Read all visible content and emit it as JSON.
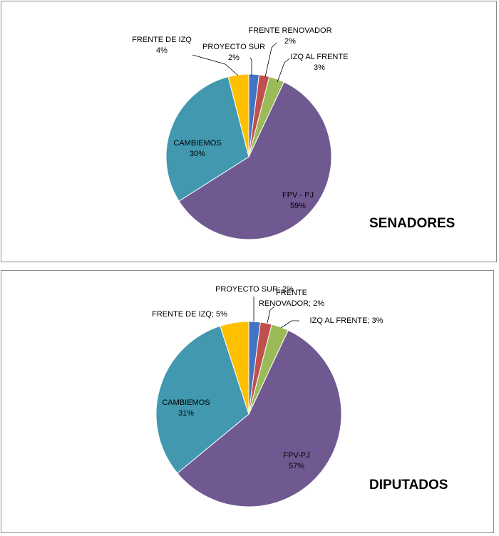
{
  "colors": {
    "proyecto_sur": "#4472C4",
    "frente_renovador": "#C0504D",
    "izq_al_frente": "#9BBB59",
    "fpv_pj": "#705990",
    "cambiemos": "#4198AF",
    "frente_de_izq": "#FFC000"
  },
  "chart_data": [
    {
      "type": "pie",
      "title": "SENADORES",
      "slices": [
        {
          "name": "PROYECTO SUR",
          "value": 2,
          "color": "#4472C4",
          "label_lines": [
            "PROYECTO SUR",
            "2%"
          ]
        },
        {
          "name": "FRENTE RENOVADOR",
          "value": 2,
          "color": "#C0504D",
          "label_lines": [
            "FRENTE  RENOVADOR",
            "2%"
          ]
        },
        {
          "name": "IZQ AL FRENTE",
          "value": 3,
          "color": "#9BBB59",
          "label_lines": [
            "IZQ AL FRENTE",
            "3%"
          ]
        },
        {
          "name": "FPV - PJ",
          "value": 59,
          "color": "#705990",
          "label_lines": [
            "FPV - PJ",
            "59%"
          ]
        },
        {
          "name": "CAMBIEMOS",
          "value": 30,
          "color": "#4198AF",
          "label_lines": [
            "CAMBIEMOS",
            "30%"
          ]
        },
        {
          "name": "FRENTE DE IZQ",
          "value": 4,
          "color": "#FFC000",
          "label_lines": [
            "FRENTE  DE IZQ",
            "4%"
          ]
        }
      ]
    },
    {
      "type": "pie",
      "title": "DIPUTADOS",
      "slices": [
        {
          "name": "PROYECTO SUR",
          "value": 2,
          "color": "#4472C4",
          "label_lines": [
            "PROYECTO SUR;  2%"
          ]
        },
        {
          "name": "FRENTE RENOVADOR",
          "value": 2,
          "color": "#C0504D",
          "label_lines": [
            "FRENTE",
            "RENOVADOR;  2%"
          ]
        },
        {
          "name": "IZQ AL FRENTE",
          "value": 3,
          "color": "#9BBB59",
          "label_lines": [
            "IZQ AL FRENTE;  3%"
          ]
        },
        {
          "name": "FPV-PJ",
          "value": 57,
          "color": "#705990",
          "label_lines": [
            "FPV-PJ",
            "57%"
          ]
        },
        {
          "name": "CAMBIEMOS",
          "value": 31,
          "color": "#4198AF",
          "label_lines": [
            "CAMBIEMOS",
            "31%"
          ]
        },
        {
          "name": "FRENTE DE IZQ",
          "value": 5,
          "color": "#FFC000",
          "label_lines": [
            "FRENTE  DE IZQ; 5%"
          ]
        }
      ]
    }
  ]
}
